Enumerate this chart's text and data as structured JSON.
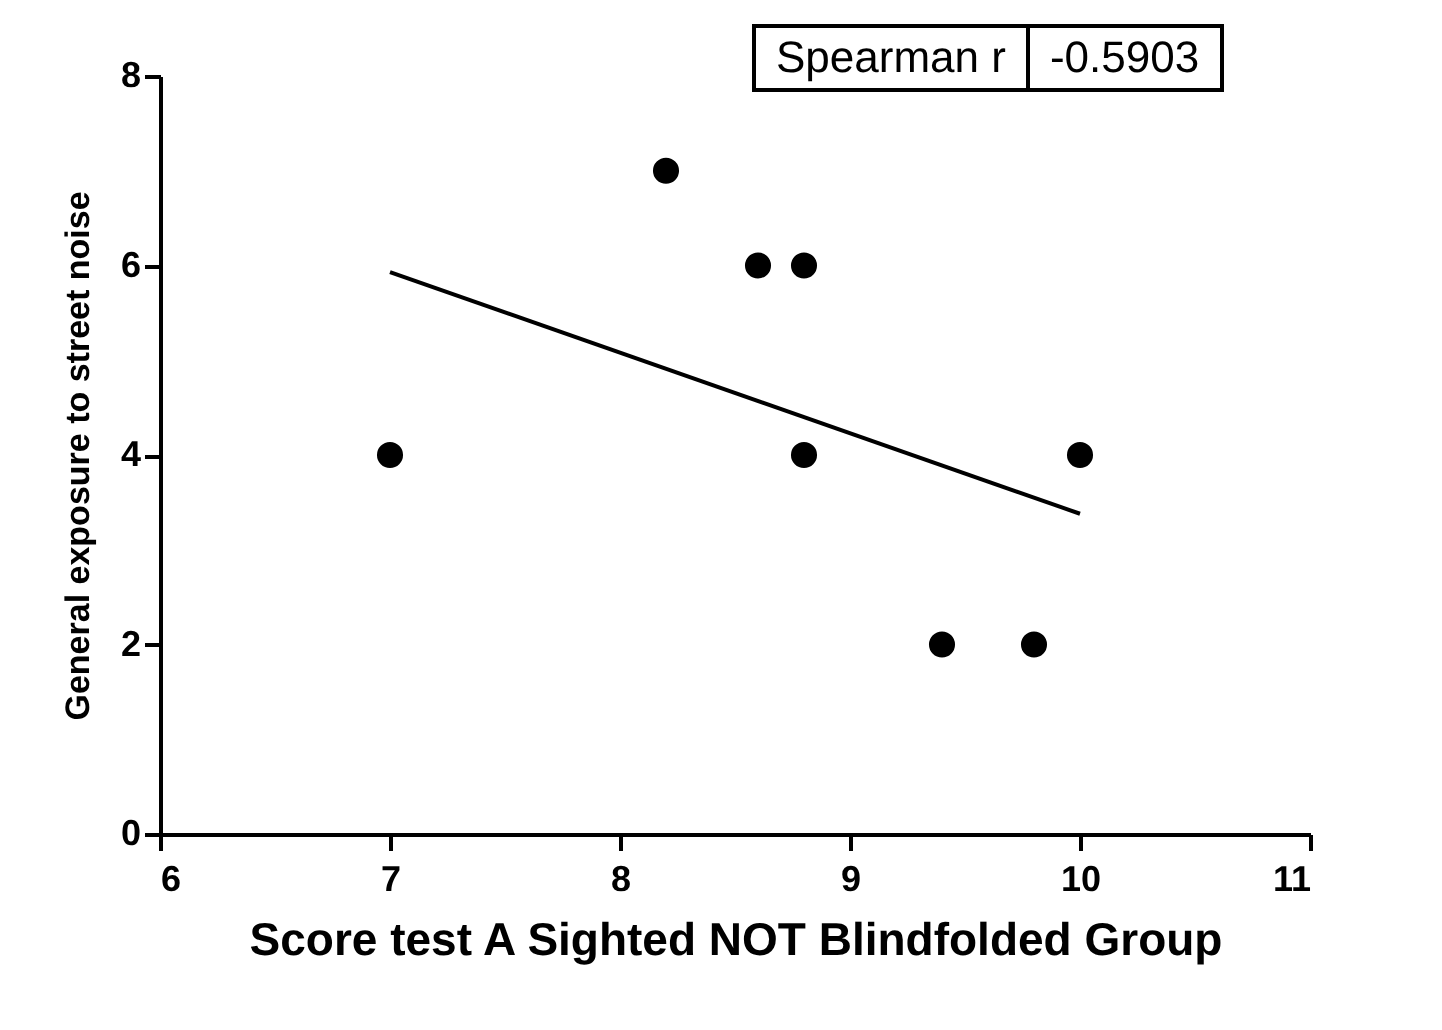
{
  "chart_data": {
    "type": "scatter",
    "xlabel": "Score test A Sighted NOT Blindfolded Group",
    "ylabel": "General exposure to street noise",
    "annotations": [
      "Spearman r",
      "-0.5903"
    ],
    "xlim": [
      6,
      11
    ],
    "xticks": [
      6,
      7,
      8,
      9,
      10,
      11
    ],
    "ylim": [
      0,
      8
    ],
    "yticks": [
      0,
      2,
      4,
      6,
      8
    ],
    "grid": false,
    "series": [
      {
        "color": "#000000",
        "marker": "circle",
        "x": [
          7,
          8.2,
          8.6,
          8.8,
          8.8,
          9.4,
          9.8,
          10
        ],
        "values": [
          4,
          7,
          6,
          6,
          4,
          2,
          2,
          4
        ]
      },
      {
        "type": "line",
        "color": "#000000",
        "line_style": "solid",
        "x": [
          7,
          10
        ],
        "values": [
          5.93,
          3.38
        ]
      }
    ]
  }
}
